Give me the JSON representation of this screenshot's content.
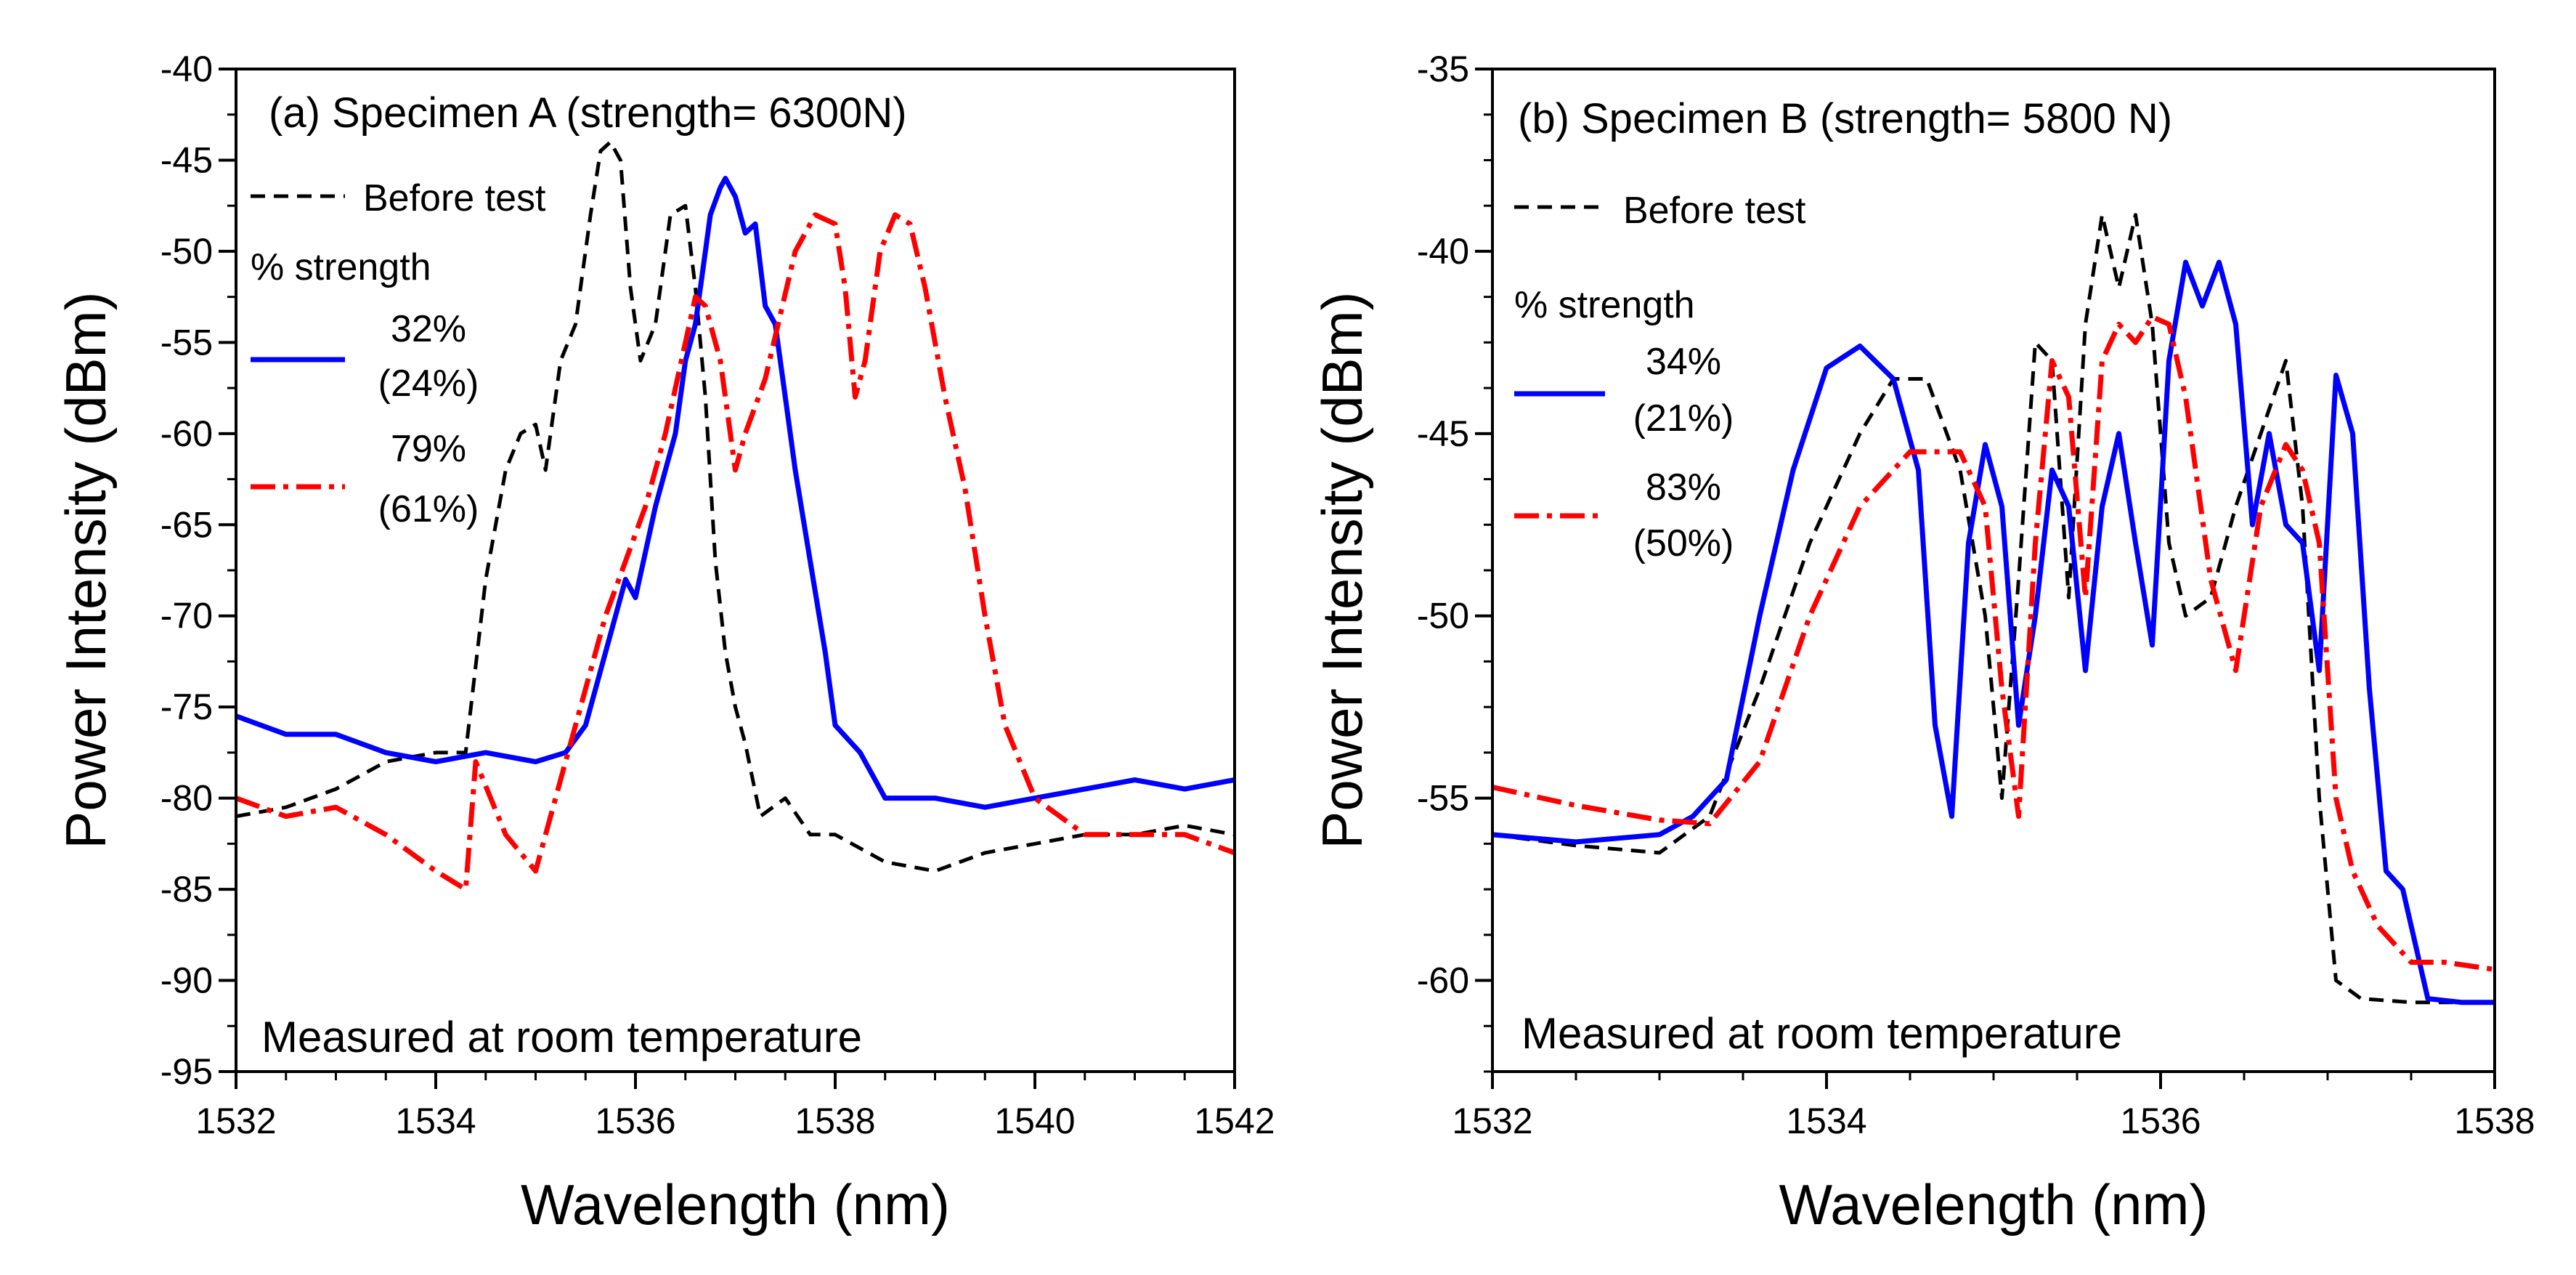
{
  "chart_data": [
    {
      "type": "line",
      "title": "(a) Specimen A (strength= 6300N)",
      "note": "Measured at room temperature",
      "xlabel": "Wavelength (nm)",
      "ylabel": "Power Intensity (dBm)",
      "xlim": [
        1532,
        1542
      ],
      "ylim": [
        -95,
        -40
      ],
      "xticks": [
        1532,
        1534,
        1536,
        1538,
        1540,
        1542
      ],
      "yticks": [
        -95,
        -90,
        -85,
        -80,
        -75,
        -70,
        -65,
        -60,
        -55,
        -50,
        -45,
        -40
      ],
      "x_tick_labels": [
        "1532",
        "1534",
        "1536",
        "1538",
        "1540",
        "1542"
      ],
      "y_tick_labels": [
        "-95",
        "-90",
        "-85",
        "-80",
        "-75",
        "-70",
        "-65",
        "-60",
        "-55",
        "-50",
        "-45",
        "-40"
      ],
      "legend": {
        "position": "top-left",
        "heading": "% strength",
        "entries": [
          {
            "series": 0,
            "lines": [
              "Before test"
            ]
          },
          {
            "series": 1,
            "lines": [
              "32%",
              "(24%)"
            ]
          },
          {
            "series": 2,
            "lines": [
              "79%",
              "(61%)"
            ]
          }
        ]
      },
      "series": [
        {
          "name": "Before test",
          "color": "#000000",
          "style": "dashed",
          "x": [
            1532,
            1532.5,
            1533,
            1533.5,
            1534,
            1534.3,
            1534.5,
            1534.7,
            1534.85,
            1535,
            1535.1,
            1535.25,
            1535.4,
            1535.55,
            1535.65,
            1535.75,
            1535.85,
            1535.95,
            1536.05,
            1536.2,
            1536.35,
            1536.5,
            1536.6,
            1536.7,
            1536.8,
            1536.9,
            1537,
            1537.1,
            1537.25,
            1537.5,
            1537.75,
            1538,
            1538.5,
            1539,
            1539.5,
            1540,
            1540.5,
            1541,
            1541.5,
            1542
          ],
          "values": [
            -81,
            -80.5,
            -79.5,
            -78,
            -77.5,
            -77.5,
            -68,
            -62,
            -60,
            -59.5,
            -62,
            -56,
            -54,
            -48,
            -44.5,
            -44,
            -45,
            -52,
            -56,
            -54,
            -48,
            -47.5,
            -52,
            -58,
            -67,
            -72,
            -75,
            -77,
            -81,
            -80,
            -82,
            -82,
            -83.5,
            -84,
            -83,
            -82.5,
            -82,
            -82,
            -81.5,
            -82
          ]
        },
        {
          "name": "32% (24%)",
          "color": "#0000ff",
          "style": "solid",
          "x": [
            1532,
            1532.5,
            1533,
            1533.5,
            1534,
            1534.5,
            1535,
            1535.3,
            1535.5,
            1535.7,
            1535.9,
            1536,
            1536.2,
            1536.4,
            1536.5,
            1536.6,
            1536.7,
            1536.75,
            1536.85,
            1536.9,
            1537,
            1537.1,
            1537.2,
            1537.3,
            1537.4,
            1537.5,
            1537.6,
            1537.75,
            1537.9,
            1538,
            1538.25,
            1538.5,
            1539,
            1539.5,
            1540,
            1540.5,
            1541,
            1541.5,
            1542
          ],
          "values": [
            -75.5,
            -76.5,
            -76.5,
            -77.5,
            -78,
            -77.5,
            -78,
            -77.5,
            -76,
            -72,
            -68,
            -69,
            -64,
            -60,
            -56,
            -54,
            -50,
            -48,
            -46.5,
            -46,
            -47,
            -49,
            -48.5,
            -53,
            -54,
            -58,
            -62,
            -67,
            -72,
            -76,
            -77.5,
            -80,
            -80,
            -80.5,
            -80,
            -79.5,
            -79,
            -79.5,
            -79
          ]
        },
        {
          "name": "79% (61%)",
          "color": "#ff0000",
          "style": "dashdot",
          "x": [
            1532,
            1532.5,
            1533,
            1533.5,
            1534,
            1534.3,
            1534.4,
            1534.7,
            1535,
            1535.3,
            1535.5,
            1535.7,
            1535.9,
            1536.1,
            1536.3,
            1536.5,
            1536.6,
            1536.7,
            1536.85,
            1537,
            1537.1,
            1537.3,
            1537.6,
            1537.8,
            1538,
            1538.1,
            1538.2,
            1538.3,
            1538.45,
            1538.6,
            1538.75,
            1538.9,
            1539.1,
            1539.3,
            1539.5,
            1539.7,
            1540,
            1540.5,
            1541,
            1541.5,
            1542
          ],
          "values": [
            -80,
            -81,
            -80.5,
            -82,
            -84,
            -85,
            -78,
            -82,
            -84,
            -78,
            -74,
            -70,
            -67,
            -64,
            -60,
            -55,
            -52.5,
            -53,
            -56,
            -62,
            -60,
            -57,
            -50,
            -48,
            -48.5,
            -52,
            -58,
            -56,
            -50,
            -48,
            -48.5,
            -52,
            -58,
            -63,
            -70,
            -76,
            -80,
            -82,
            -82,
            -82,
            -83
          ]
        }
      ]
    },
    {
      "type": "line",
      "title": "(b) Specimen B (strength= 5800 N)",
      "note": "Measured at room temperature",
      "xlabel": "Wavelength (nm)",
      "ylabel": "Power Intensity (dBm)",
      "xlim": [
        1532,
        1538
      ],
      "ylim": [
        -62.5,
        -35
      ],
      "xticks": [
        1532,
        1534,
        1536,
        1538
      ],
      "yticks": [
        -60,
        -55,
        -50,
        -45,
        -40,
        -35
      ],
      "x_tick_labels": [
        "1532",
        "1534",
        "1536",
        "1538"
      ],
      "y_tick_labels": [
        "-60",
        "-55",
        "-50",
        "-45",
        "-40",
        "-35"
      ],
      "legend": {
        "position": "top-left",
        "heading": "% strength",
        "entries": [
          {
            "series": 0,
            "lines": [
              "Before test"
            ]
          },
          {
            "series": 1,
            "lines": [
              "34%",
              "(21%)"
            ]
          },
          {
            "series": 2,
            "lines": [
              "83%",
              "(50%)"
            ]
          }
        ]
      },
      "series": [
        {
          "name": "Before test",
          "color": "#000000",
          "style": "dashed",
          "x": [
            1532,
            1532.5,
            1533,
            1533.3,
            1533.6,
            1533.9,
            1534.2,
            1534.4,
            1534.6,
            1534.8,
            1534.95,
            1535.05,
            1535.15,
            1535.25,
            1535.35,
            1535.45,
            1535.55,
            1535.65,
            1535.75,
            1535.85,
            1535.95,
            1536.05,
            1536.15,
            1536.3,
            1536.45,
            1536.6,
            1536.75,
            1536.85,
            1536.95,
            1537.05,
            1537.2,
            1537.5,
            1538
          ],
          "values": [
            -56,
            -56.3,
            -56.5,
            -55.5,
            -52,
            -48,
            -45,
            -43.5,
            -43.5,
            -46,
            -50,
            -55,
            -49,
            -42.5,
            -43,
            -49.5,
            -42,
            -39,
            -41,
            -39,
            -42,
            -48,
            -50,
            -49.5,
            -47,
            -45,
            -43,
            -47,
            -55,
            -60,
            -60.5,
            -60.6,
            -60.6
          ]
        },
        {
          "name": "34% (21%)",
          "color": "#0000ff",
          "style": "solid",
          "x": [
            1532,
            1532.5,
            1533,
            1533.2,
            1533.4,
            1533.6,
            1533.8,
            1534,
            1534.2,
            1534.4,
            1534.55,
            1534.65,
            1534.75,
            1534.85,
            1534.95,
            1535.05,
            1535.15,
            1535.25,
            1535.35,
            1535.45,
            1535.55,
            1535.65,
            1535.75,
            1535.85,
            1535.95,
            1536.05,
            1536.15,
            1536.25,
            1536.35,
            1536.45,
            1536.55,
            1536.65,
            1536.75,
            1536.85,
            1536.95,
            1537.05,
            1537.15,
            1537.25,
            1537.35,
            1537.45,
            1537.6,
            1537.8,
            1538
          ],
          "values": [
            -56,
            -56.2,
            -56,
            -55.5,
            -54.5,
            -50,
            -46,
            -43.2,
            -42.6,
            -43.5,
            -46,
            -53,
            -55.5,
            -48,
            -45.3,
            -47,
            -53,
            -50,
            -46,
            -47,
            -51.5,
            -47,
            -45,
            -48,
            -50.8,
            -43,
            -40.3,
            -41.5,
            -40.3,
            -42,
            -47.5,
            -45,
            -47.5,
            -48,
            -51.5,
            -43.4,
            -45,
            -52,
            -57,
            -57.5,
            -60.5,
            -60.6,
            -60.6
          ]
        },
        {
          "name": "83% (50%)",
          "color": "#ff0000",
          "style": "dashdot",
          "x": [
            1532,
            1532.5,
            1533,
            1533.3,
            1533.6,
            1533.9,
            1534.2,
            1534.5,
            1534.8,
            1534.95,
            1535.05,
            1535.15,
            1535.25,
            1535.35,
            1535.45,
            1535.55,
            1535.65,
            1535.75,
            1535.85,
            1535.95,
            1536.05,
            1536.15,
            1536.3,
            1536.45,
            1536.6,
            1536.75,
            1536.85,
            1536.95,
            1537.05,
            1537.15,
            1537.3,
            1537.5,
            1537.7,
            1538
          ],
          "values": [
            -54.7,
            -55.2,
            -55.6,
            -55.7,
            -54,
            -50,
            -47,
            -45.5,
            -45.5,
            -47,
            -52,
            -55.5,
            -48,
            -43,
            -44,
            -49.5,
            -43,
            -42,
            -42.5,
            -41.8,
            -42,
            -44,
            -49,
            -51.5,
            -47,
            -45.3,
            -46,
            -48,
            -55,
            -57,
            -58.5,
            -59.5,
            -59.5,
            -59.7
          ]
        }
      ]
    }
  ]
}
